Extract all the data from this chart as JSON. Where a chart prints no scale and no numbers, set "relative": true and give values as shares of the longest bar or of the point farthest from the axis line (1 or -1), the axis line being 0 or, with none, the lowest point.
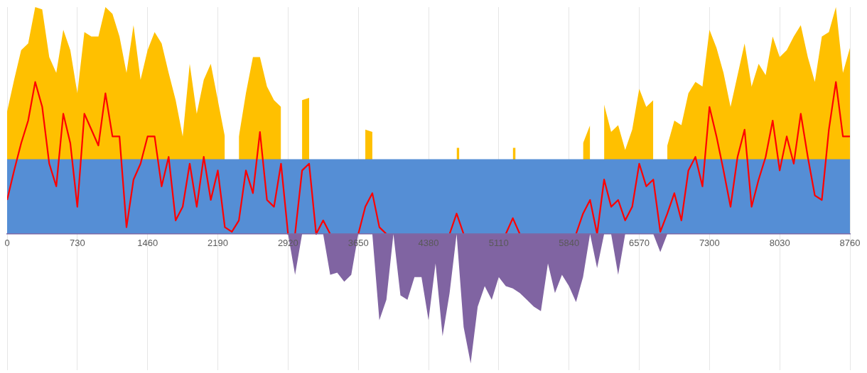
{
  "chart_data": {
    "type": "area",
    "relative": true,
    "grid": "x",
    "marker": "none",
    "xlim": [
      0,
      8760
    ],
    "xticks": [
      0,
      730,
      1460,
      2190,
      2920,
      3650,
      4380,
      5110,
      5840,
      6570,
      7300,
      8030,
      8760
    ],
    "x": [
      0,
      73,
      146,
      219,
      292,
      365,
      438,
      511,
      584,
      657,
      730,
      803,
      876,
      949,
      1022,
      1095,
      1168,
      1241,
      1314,
      1387,
      1460,
      1533,
      1606,
      1679,
      1752,
      1825,
      1898,
      1971,
      2044,
      2117,
      2190,
      2263,
      2336,
      2409,
      2482,
      2555,
      2628,
      2701,
      2774,
      2847,
      2920,
      2993,
      3066,
      3139,
      3212,
      3285,
      3358,
      3431,
      3504,
      3577,
      3650,
      3723,
      3796,
      3869,
      3942,
      4015,
      4088,
      4161,
      4234,
      4307,
      4380,
      4453,
      4526,
      4599,
      4672,
      4745,
      4818,
      4891,
      4964,
      5037,
      5110,
      5183,
      5256,
      5329,
      5402,
      5475,
      5548,
      5621,
      5694,
      5767,
      5840,
      5913,
      5986,
      6059,
      6132,
      6205,
      6278,
      6351,
      6424,
      6497,
      6570,
      6643,
      6716,
      6789,
      6862,
      6935,
      7008,
      7081,
      7154,
      7227,
      7300,
      7373,
      7446,
      7519,
      7592,
      7665,
      7738,
      7811,
      7884,
      7957,
      8030,
      8103,
      8176,
      8249,
      8322,
      8395,
      8468,
      8541,
      8614,
      8687,
      8760
    ],
    "series": [
      {
        "color": "#ffc000",
        "x": [
          0,
          73,
          146,
          219,
          292,
          365,
          438,
          511,
          584,
          657,
          730,
          803,
          876,
          949,
          1022,
          1095,
          1168,
          1241,
          1314,
          1387,
          1460,
          1533,
          1606,
          1679,
          1752,
          1825,
          1898,
          1971,
          2044,
          2117,
          2190,
          2263,
          2336,
          2409,
          2482,
          2555,
          2628,
          2701,
          2774,
          2847,
          2920,
          2993,
          3066,
          3139,
          3212,
          3285,
          3358,
          3431,
          3504,
          3577,
          3650,
          3723,
          3796,
          3869,
          3942,
          4015,
          4088,
          4161,
          4234,
          4307,
          4380,
          4453,
          4526,
          4599,
          4672,
          4700,
          4745,
          4818,
          4891,
          4964,
          5037,
          5110,
          5183,
          5256,
          5285,
          5329,
          5402,
          5475,
          5548,
          5621,
          5694,
          5767,
          5840,
          5913,
          5986,
          6059,
          6132,
          6205,
          6278,
          6351,
          6424,
          6497,
          6570,
          6643,
          6716,
          6789,
          6862,
          6935,
          7008,
          7081,
          7154,
          7227,
          7300,
          7373,
          7446,
          7519,
          7592,
          7665,
          7738,
          7811,
          7884,
          7957,
          8030,
          8103,
          8176,
          8249,
          8322,
          8395,
          8468,
          8541,
          8614,
          8687,
          8760
        ],
        "values": [
          0.54,
          0.68,
          0.81,
          0.84,
          1.0,
          0.99,
          0.78,
          0.71,
          0.9,
          0.81,
          0.62,
          0.89,
          0.87,
          0.87,
          1.0,
          0.97,
          0.87,
          0.71,
          0.92,
          0.68,
          0.81,
          0.89,
          0.84,
          0.71,
          0.59,
          0.43,
          0.75,
          0.53,
          0.68,
          0.75,
          0.59,
          0.43,
          null,
          0.43,
          0.62,
          0.78,
          0.78,
          0.65,
          0.59,
          0.56,
          null,
          null,
          0.59,
          0.6,
          null,
          null,
          null,
          null,
          null,
          null,
          null,
          0.46,
          0.45,
          null,
          null,
          null,
          null,
          null,
          null,
          null,
          null,
          null,
          null,
          null,
          0.38,
          0.38,
          null,
          null,
          null,
          null,
          null,
          null,
          null,
          0.38,
          0.38,
          null,
          null,
          null,
          null,
          null,
          null,
          null,
          null,
          null,
          0.4,
          0.48,
          null,
          0.57,
          0.45,
          0.48,
          0.37,
          0.46,
          0.64,
          0.56,
          0.59,
          null,
          0.39,
          0.5,
          0.48,
          0.62,
          0.67,
          0.65,
          0.9,
          0.82,
          0.71,
          0.56,
          0.7,
          0.84,
          0.65,
          0.75,
          0.7,
          0.87,
          0.78,
          0.81,
          0.87,
          0.92,
          0.78,
          0.67,
          0.87,
          0.89,
          1.0,
          0.71,
          0.82
        ]
      },
      {
        "color": "#558ed5",
        "values": [
          0.33,
          0.33,
          0.33,
          0.33,
          0.33,
          0.33,
          0.33,
          0.33,
          0.33,
          0.33,
          0.33,
          0.33,
          0.33,
          0.33,
          0.33,
          0.33,
          0.33,
          0.33,
          0.33,
          0.33,
          0.33,
          0.33,
          0.33,
          0.33,
          0.33,
          0.33,
          0.33,
          0.33,
          0.33,
          0.33,
          0.33,
          0.33,
          0.33,
          0.33,
          0.33,
          0.33,
          0.33,
          0.33,
          0.33,
          0.33,
          0.33,
          0.33,
          0.33,
          0.33,
          0.33,
          0.33,
          0.33,
          0.33,
          0.33,
          0.33,
          0.33,
          0.33,
          0.33,
          0.33,
          0.33,
          0.33,
          0.33,
          0.33,
          0.33,
          0.33,
          0.33,
          0.33,
          0.33,
          0.33,
          0.33,
          0.33,
          0.33,
          0.33,
          0.33,
          0.33,
          0.33,
          0.33,
          0.33,
          0.33,
          0.33,
          0.33,
          0.33,
          0.33,
          0.33,
          0.33,
          0.33,
          0.33,
          0.33,
          0.33,
          0.33,
          0.33,
          0.33,
          0.33,
          0.33,
          0.33,
          0.33,
          0.33,
          0.33,
          0.33,
          0.33,
          0.33,
          0.33,
          0.33,
          0.33,
          0.33,
          0.33,
          0.33,
          0.33,
          0.33,
          0.33,
          0.33,
          0.33,
          0.33,
          0.33,
          0.33,
          0.33,
          0.33,
          0.33,
          0.33,
          0.33,
          0.33,
          0.33,
          0.33,
          0.33,
          0.33,
          0.33
        ]
      },
      {
        "type": "line",
        "color": "#ff0000",
        "values": [
          0.15,
          0.28,
          0.4,
          0.5,
          0.67,
          0.56,
          0.31,
          0.21,
          0.53,
          0.4,
          0.12,
          0.53,
          0.46,
          0.39,
          0.62,
          0.43,
          0.43,
          0.03,
          0.24,
          0.31,
          0.43,
          0.43,
          0.21,
          0.34,
          0.06,
          0.12,
          0.31,
          0.12,
          0.34,
          0.15,
          0.28,
          0.03,
          0.01,
          0.06,
          0.28,
          0.18,
          0.45,
          0.15,
          0.12,
          0.31,
          0,
          0,
          0.28,
          0.31,
          0,
          0.06,
          0,
          null,
          null,
          null,
          0,
          0.12,
          0.18,
          0.03,
          0,
          null,
          null,
          null,
          null,
          null,
          null,
          null,
          null,
          0,
          0.09,
          0,
          null,
          null,
          null,
          null,
          null,
          0,
          0.07,
          0,
          null,
          null,
          null,
          null,
          null,
          null,
          null,
          0,
          0.09,
          0.15,
          0,
          0.24,
          0.12,
          0.15,
          0.06,
          0.12,
          0.31,
          0.21,
          0.24,
          0.01,
          0.09,
          0.18,
          0.06,
          0.28,
          0.34,
          0.21,
          0.56,
          0.43,
          0.28,
          0.12,
          0.34,
          0.46,
          0.12,
          0.24,
          0.34,
          0.5,
          0.28,
          0.43,
          0.31,
          0.53,
          0.34,
          0.17,
          0.15,
          0.46,
          0.67,
          0.43,
          0.43
        ]
      },
      {
        "color": "#8064a2",
        "values": [
          0,
          0,
          0,
          0,
          0,
          0,
          0,
          0,
          0,
          0,
          0,
          0,
          0,
          0,
          0,
          0,
          0,
          0,
          0,
          0,
          0,
          0,
          0,
          0,
          0,
          0,
          0,
          0,
          0,
          0,
          0,
          0,
          0,
          0,
          0,
          0,
          0,
          0,
          0,
          0,
          0,
          -0.18,
          0,
          0,
          0,
          0,
          -0.18,
          -0.17,
          -0.21,
          -0.18,
          0,
          0,
          0,
          -0.38,
          -0.29,
          0,
          -0.27,
          -0.29,
          -0.19,
          -0.19,
          -0.38,
          -0.13,
          -0.45,
          -0.26,
          0,
          -0.41,
          -0.57,
          -0.32,
          -0.23,
          -0.29,
          -0.19,
          -0.23,
          -0.24,
          -0.26,
          -0.29,
          -0.32,
          -0.34,
          -0.13,
          -0.26,
          -0.18,
          -0.23,
          -0.3,
          -0.19,
          0,
          -0.15,
          0,
          0,
          -0.18,
          0,
          0,
          0,
          0,
          0,
          -0.08,
          0,
          0,
          0,
          0,
          0,
          0,
          0,
          0,
          0,
          0,
          0,
          0,
          0,
          0,
          0,
          0,
          0,
          0,
          0,
          0,
          0,
          0,
          0,
          0,
          0,
          0,
          0
        ]
      }
    ]
  }
}
